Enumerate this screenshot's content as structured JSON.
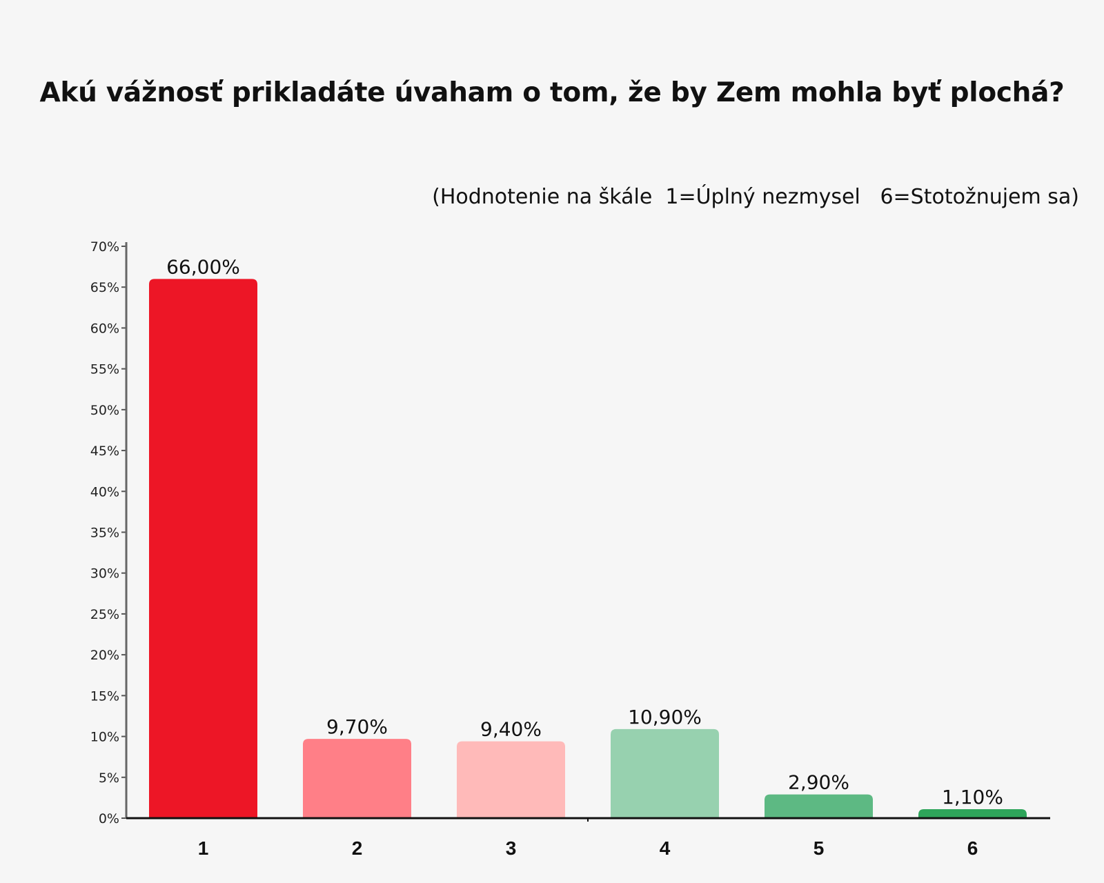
{
  "chart_data": {
    "type": "bar",
    "title": "Akú vážnosť prikladáte úvaham o tom, že by Zem mohla byť plochá?",
    "subtitle": "(Hodnotenie na škále  1=Úplný nezmysel   6=Stotožnujem sa)",
    "categories": [
      "1",
      "2",
      "3",
      "4",
      "5",
      "6"
    ],
    "values": [
      66.0,
      9.7,
      9.4,
      10.9,
      2.9,
      1.1
    ],
    "data_labels": [
      "66,00%",
      "9,70%",
      "9,40%",
      "10,90%",
      "2,90%",
      "1,10%"
    ],
    "bar_colors": [
      "#ed1626",
      "#ff7f87",
      "#ffbab9",
      "#97d1af",
      "#5db983",
      "#2ea55a"
    ],
    "ylim": [
      0,
      70
    ],
    "y_ticks": [
      0,
      5,
      10,
      15,
      20,
      25,
      30,
      35,
      40,
      45,
      50,
      55,
      60,
      65,
      70
    ],
    "y_tick_labels": [
      "0%",
      "5%",
      "10%",
      "15%",
      "20%",
      "25%",
      "30%",
      "35%",
      "40%",
      "45%",
      "50%",
      "55%",
      "60%",
      "65%",
      "70%"
    ],
    "grid": false,
    "xlabel": "",
    "ylabel": ""
  }
}
